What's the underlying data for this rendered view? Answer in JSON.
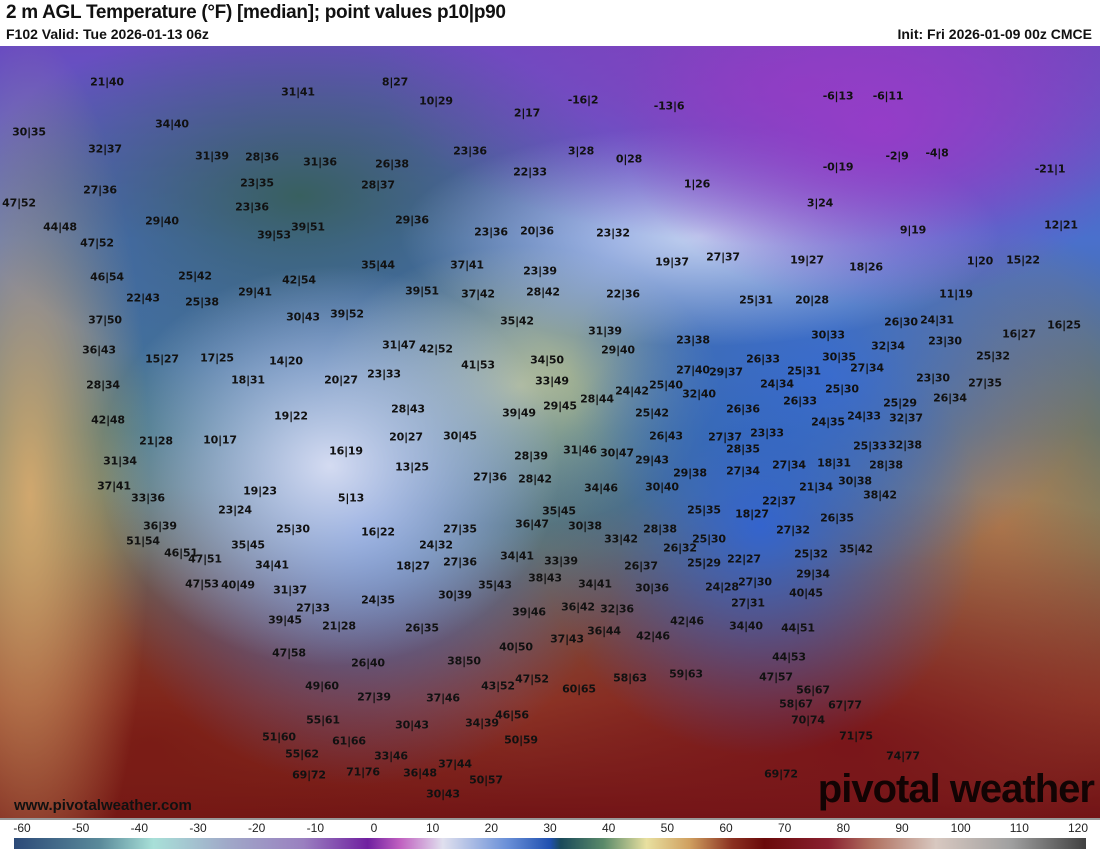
{
  "header": {
    "title": "2 m AGL Temperature (°F) [median]; point values p10|p90",
    "valid": "F102 Valid: Tue 2026-01-13 06z",
    "init": "Init: Fri 2026-01-09 00z CMCE"
  },
  "footer": {
    "site": "www.pivotalweather.com",
    "logo": "pivotal weather"
  },
  "colorbar": {
    "ticks": [
      "-60",
      "-50",
      "-40",
      "-30",
      "-20",
      "-10",
      "0",
      "10",
      "20",
      "30",
      "40",
      "50",
      "60",
      "70",
      "80",
      "90",
      "100",
      "110",
      "120"
    ],
    "range": [
      -60,
      120
    ],
    "units": "°F"
  },
  "points": [
    "21|40",
    "30|35",
    "34|40",
    "31|41",
    "8|27",
    "10|29",
    "2|17",
    "-16|2",
    "-13|6",
    "-6|13",
    "-6|11",
    "32|37",
    "31|39",
    "28|36",
    "31|36",
    "26|38",
    "23|36",
    "3|28",
    "0|28",
    "-0|19",
    "-2|9",
    "-4|8",
    "-21|1",
    "22|33",
    "23|35",
    "28|37",
    "1|26",
    "27|36",
    "47|52",
    "23|36",
    "29|40",
    "29|36",
    "3|24",
    "39|53",
    "39|51",
    "23|36",
    "20|36",
    "23|32",
    "9|19",
    "12|21",
    "44|48",
    "47|52",
    "46|54",
    "25|42",
    "42|54",
    "35|44",
    "37|41",
    "23|39",
    "19|37",
    "27|37",
    "19|27",
    "18|26",
    "1|20",
    "15|22",
    "22|43",
    "25|38",
    "29|41",
    "39|51",
    "37|42",
    "28|42",
    "22|36",
    "25|31",
    "20|28",
    "11|19",
    "37|50",
    "30|43",
    "39|52",
    "35|42",
    "26|30",
    "24|31",
    "16|27",
    "16|25",
    "36|43",
    "31|47",
    "42|52",
    "31|39",
    "29|40",
    "23|38",
    "30|33",
    "32|34",
    "23|30",
    "25|32",
    "15|27",
    "17|25",
    "14|20",
    "20|27",
    "23|33",
    "41|53",
    "34|50",
    "26|33",
    "30|35",
    "27|34",
    "28|34",
    "18|31",
    "33|49",
    "27|40",
    "29|37",
    "24|34",
    "25|31",
    "23|30",
    "27|35",
    "42|48",
    "19|22",
    "28|43",
    "39|49",
    "29|45",
    "28|44",
    "24|42",
    "25|40",
    "32|40",
    "25|30",
    "26|33",
    "25|29",
    "26|34",
    "32|37",
    "24|35",
    "24|33",
    "21|28",
    "10|17",
    "16|19",
    "20|27",
    "30|45",
    "25|42",
    "26|36",
    "26|43",
    "27|37",
    "23|33",
    "25|33",
    "32|38",
    "31|34",
    "13|25",
    "28|39",
    "31|46",
    "30|47",
    "29|43",
    "28|35",
    "28|38",
    "37|41",
    "27|36",
    "28|42",
    "29|38",
    "27|34",
    "27|34",
    "18|31",
    "30|38",
    "21|34",
    "33|36",
    "19|23",
    "5|13",
    "34|46",
    "30|40",
    "38|42",
    "22|37",
    "23|24",
    "35|45",
    "25|35",
    "18|27",
    "26|35",
    "36|39",
    "25|30",
    "16|22",
    "27|35",
    "36|47",
    "30|38",
    "28|38",
    "27|32",
    "33|42",
    "51|54",
    "35|45",
    "24|32",
    "26|32",
    "25|30",
    "25|32",
    "35|42",
    "46|51",
    "47|51",
    "34|41",
    "18|27",
    "27|36",
    "34|41",
    "33|39",
    "26|37",
    "25|29",
    "22|27",
    "29|34",
    "47|53",
    "40|49",
    "31|37",
    "35|43",
    "38|43",
    "34|41",
    "30|36",
    "24|28",
    "27|30",
    "40|45",
    "27|33",
    "24|35",
    "30|39",
    "39|46",
    "36|42",
    "32|36",
    "27|31",
    "39|45",
    "21|28",
    "26|35",
    "42|46",
    "34|40",
    "44|51",
    "42|46",
    "36|44",
    "37|43",
    "47|58",
    "26|40",
    "40|50",
    "38|50",
    "44|53",
    "49|60",
    "27|39",
    "47|52",
    "43|52",
    "60|65",
    "58|63",
    "59|63",
    "47|57",
    "56|67",
    "37|46",
    "46|56",
    "58|67",
    "67|77",
    "55|61",
    "34|39",
    "30|43",
    "70|74",
    "51|60",
    "61|66",
    "50|59",
    "71|75",
    "55|62",
    "33|46",
    "37|44",
    "74|77",
    "69|72",
    "71|76",
    "36|48",
    "50|57",
    "69|72",
    "30|43"
  ]
}
